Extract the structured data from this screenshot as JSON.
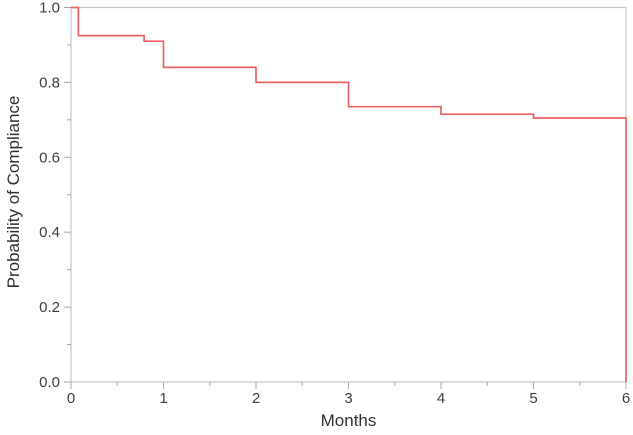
{
  "figure": {
    "background_color": "#ffffff",
    "frame_color": "#c4c4c4",
    "tick_color": "#a6a6a6",
    "tick_label_color": "#3d3d3d",
    "axis_title_color": "#303030"
  },
  "chart_data": {
    "type": "line",
    "subtype": "kaplan-meier-step-function",
    "title": "",
    "xlabel": "Months",
    "ylabel": "Probability of Compliance",
    "xlim": [
      0,
      6
    ],
    "ylim": [
      0,
      1
    ],
    "grid": false,
    "legend": "none",
    "x_ticks": {
      "major": [
        {
          "v": 0,
          "label": "0"
        },
        {
          "v": 1,
          "label": "1"
        },
        {
          "v": 2,
          "label": "2"
        },
        {
          "v": 3,
          "label": "3"
        },
        {
          "v": 4,
          "label": "4"
        },
        {
          "v": 5,
          "label": "5"
        },
        {
          "v": 6,
          "label": "6"
        }
      ],
      "minor": [
        0.5,
        1.5,
        2.5,
        3.5,
        4.5,
        5.5
      ]
    },
    "y_ticks": {
      "major": [
        {
          "v": 0.0,
          "label": "0.0"
        },
        {
          "v": 0.2,
          "label": "0.2"
        },
        {
          "v": 0.4,
          "label": "0.4"
        },
        {
          "v": 0.6,
          "label": "0.6"
        },
        {
          "v": 0.8,
          "label": "0.8"
        },
        {
          "v": 1.0,
          "label": "1.0"
        }
      ],
      "minor": [
        0.1,
        0.3,
        0.5,
        0.7,
        0.9
      ]
    },
    "series": [
      {
        "name": "Probability of Compliance",
        "color": "#ec6164",
        "drop_events": [
          {
            "month": 0.08,
            "probability_after": 0.925
          },
          {
            "month": 0.79,
            "probability_after": 0.91
          },
          {
            "month": 1.0,
            "probability_after": 0.84
          },
          {
            "month": 2.0,
            "probability_after": 0.8
          },
          {
            "month": 3.0,
            "probability_after": 0.735
          },
          {
            "month": 4.0,
            "probability_after": 0.715
          },
          {
            "month": 5.0,
            "probability_after": 0.705
          },
          {
            "month": 6.0,
            "probability_after": 0.0
          }
        ],
        "step_points": [
          [
            0,
            1.0
          ],
          [
            0.08,
            1.0
          ],
          [
            0.08,
            0.925
          ],
          [
            0.79,
            0.925
          ],
          [
            0.79,
            0.91
          ],
          [
            1.0,
            0.91
          ],
          [
            1.0,
            0.84
          ],
          [
            2.0,
            0.84
          ],
          [
            2.0,
            0.8
          ],
          [
            3.0,
            0.8
          ],
          [
            3.0,
            0.735
          ],
          [
            4.0,
            0.735
          ],
          [
            4.0,
            0.715
          ],
          [
            5.0,
            0.715
          ],
          [
            5.0,
            0.705
          ],
          [
            6.0,
            0.705
          ],
          [
            6.0,
            0.0
          ]
        ]
      }
    ]
  }
}
